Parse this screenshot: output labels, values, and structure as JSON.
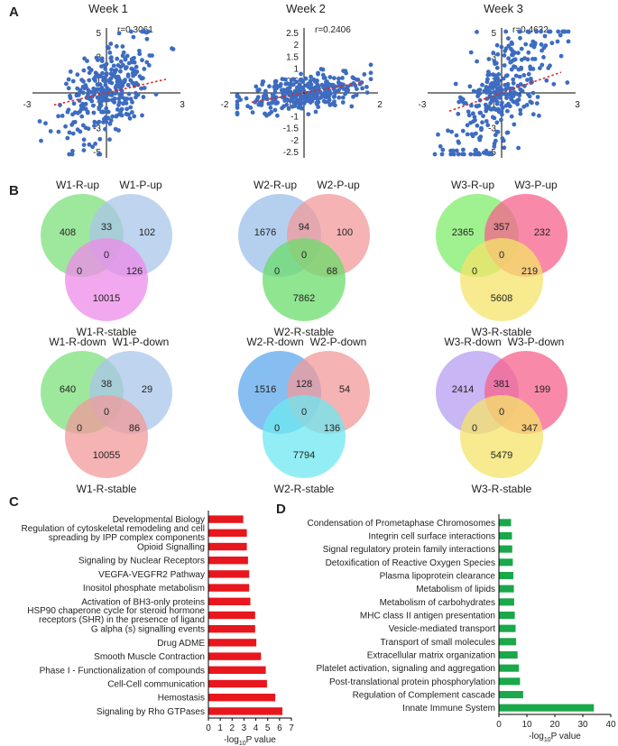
{
  "figure": {
    "panel_labels": [
      "A",
      "B",
      "C",
      "D"
    ],
    "panel_a": {
      "plots": [
        {
          "title": "Week 1",
          "r": "r=0.3061",
          "xticks": [
            "-3",
            "3"
          ],
          "yticks": [
            "5",
            "3",
            "1",
            "-1",
            "-3",
            "-5"
          ],
          "extra_xticks": [
            "1"
          ],
          "scale": 3,
          "slope": 0.3061
        },
        {
          "title": "Week 2",
          "r": "r=0.2406",
          "xticks": [
            "-2",
            "2"
          ],
          "yticks": [
            "2.5",
            "2",
            "1.5",
            "1",
            "0.5",
            "-0.5",
            "-1",
            "-1.5",
            "-2",
            "-2.5"
          ],
          "extra_xticks": [
            "0",
            "1"
          ],
          "scale": 2,
          "slope": 0.2406
        },
        {
          "title": "Week 3",
          "r": "r=0.4632",
          "xticks": [
            "-3",
            "3"
          ],
          "yticks": [
            "5",
            "3",
            "1",
            "-1",
            "-3",
            "-5"
          ],
          "extra_xticks": [
            "1"
          ],
          "scale": 3,
          "slope": 0.4632
        }
      ]
    },
    "panel_b": {
      "venns": [
        {
          "top_left": "W1-R-up",
          "top_right": "W1-P-up",
          "bottom": "W1-R-stable",
          "a_only": "408",
          "ab": "33",
          "b_only": "102",
          "abc": "0",
          "ac": "0",
          "bc": "126",
          "c_only": "10015",
          "colors": [
            "#7ee07e",
            "#a9c6ea",
            "#ee8be8"
          ]
        },
        {
          "top_left": "W2-R-up",
          "top_right": "W2-P-up",
          "bottom": "W2-R-stable",
          "a_only": "1676",
          "ab": "94",
          "b_only": "100",
          "abc": "0",
          "ac": "0",
          "bc": "68",
          "c_only": "7862",
          "colors": [
            "#9cc0ea",
            "#f19a9a",
            "#6bdc6b"
          ]
        },
        {
          "top_left": "W3-R-up",
          "top_right": "W3-P-up",
          "bottom": "W3-R-stable",
          "a_only": "2365",
          "ab": "357",
          "b_only": "232",
          "abc": "0",
          "ac": "0",
          "bc": "219",
          "c_only": "5608",
          "colors": [
            "#80ec6a",
            "#f7618c",
            "#f4e36a"
          ]
        },
        {
          "top_left": "W1-R-down",
          "top_right": "W1-P-down",
          "bottom": "W1-R-stable",
          "a_only": "640",
          "ab": "38",
          "b_only": "29",
          "abc": "0",
          "ac": "0",
          "bc": "86",
          "c_only": "10055",
          "colors": [
            "#7ee07e",
            "#a9c6ea",
            "#f29a9a"
          ]
        },
        {
          "top_left": "W2-R-down",
          "top_right": "W2-P-down",
          "bottom": "W2-R-stable",
          "a_only": "1516",
          "ab": "128",
          "b_only": "54",
          "abc": "0",
          "ac": "0",
          "bc": "136",
          "c_only": "7794",
          "colors": [
            "#5fa8ec",
            "#f19a9a",
            "#6ee8f0"
          ]
        },
        {
          "top_left": "W3-R-down",
          "top_right": "W3-P-down",
          "bottom": "W3-R-stable",
          "a_only": "2414",
          "ab": "381",
          "b_only": "199",
          "abc": "0",
          "ac": "0",
          "bc": "347",
          "c_only": "5479",
          "colors": [
            "#b79ef0",
            "#f7618c",
            "#f4e36a"
          ]
        }
      ]
    }
  },
  "chart_data": [
    {
      "type": "bar",
      "orientation": "horizontal",
      "panel": "C",
      "categories": [
        "Developmental Biology",
        "Regulation of cytoskeletal remodeling and cell|spreading by IPP complex components",
        "Opioid Signalling",
        "Signaling by Nuclear Receptors",
        "VEGFA-VEGFR2 Pathway",
        "Inositol phosphate metabolism",
        "Activation of BH3-only proteins",
        "HSP90 chaperone cycle for steroid hormone|receptors (SHR) in the presence of ligand",
        "G alpha (s) signalling events",
        "Drug ADME",
        "Smooth Muscle Contraction",
        "Phase I - Functionalization of compounds",
        "Cell-Cell communication",
        "Hemostasis",
        "Signaling by Rho GTPases"
      ],
      "values": [
        2.9,
        3.2,
        3.2,
        3.3,
        3.4,
        3.4,
        3.5,
        3.9,
        3.9,
        4.0,
        4.4,
        4.8,
        4.9,
        5.6,
        6.2
      ],
      "color": "#e8161d",
      "xlabel": "-log10P value",
      "xticks": [
        "0",
        "1",
        "2",
        "3",
        "4",
        "5",
        "6",
        "7"
      ],
      "xlim": [
        0,
        7
      ]
    },
    {
      "type": "bar",
      "orientation": "horizontal",
      "panel": "D",
      "categories": [
        "Condensation of Prometaphase Chromosomes",
        "Integrin cell surface interactions",
        "Signal regulatory protein family interactions",
        "Detoxification of Reactive Oxygen Species",
        "Plasma lipoprotein clearance",
        "Metabolism of lipids",
        "Metabolism of carbohydrates",
        "MHC class II antigen presentation",
        "Vesicle-mediated transport",
        "Transport of small molecules",
        "Extracellular matrix organization",
        "Platelet activation, signaling and aggregation",
        "Post-translational protein phosphorylation",
        "Regulation of Complement cascade",
        "Innate Immune System"
      ],
      "values": [
        4.2,
        4.5,
        4.6,
        4.8,
        5.0,
        5.2,
        5.3,
        5.5,
        5.8,
        6.0,
        6.5,
        7.0,
        7.4,
        8.5,
        33.8
      ],
      "color": "#1aa84a",
      "xlabel": "-log10P value",
      "xticks": [
        "0",
        "10",
        "20",
        "30",
        "40"
      ],
      "xlim": [
        0,
        40
      ]
    }
  ]
}
